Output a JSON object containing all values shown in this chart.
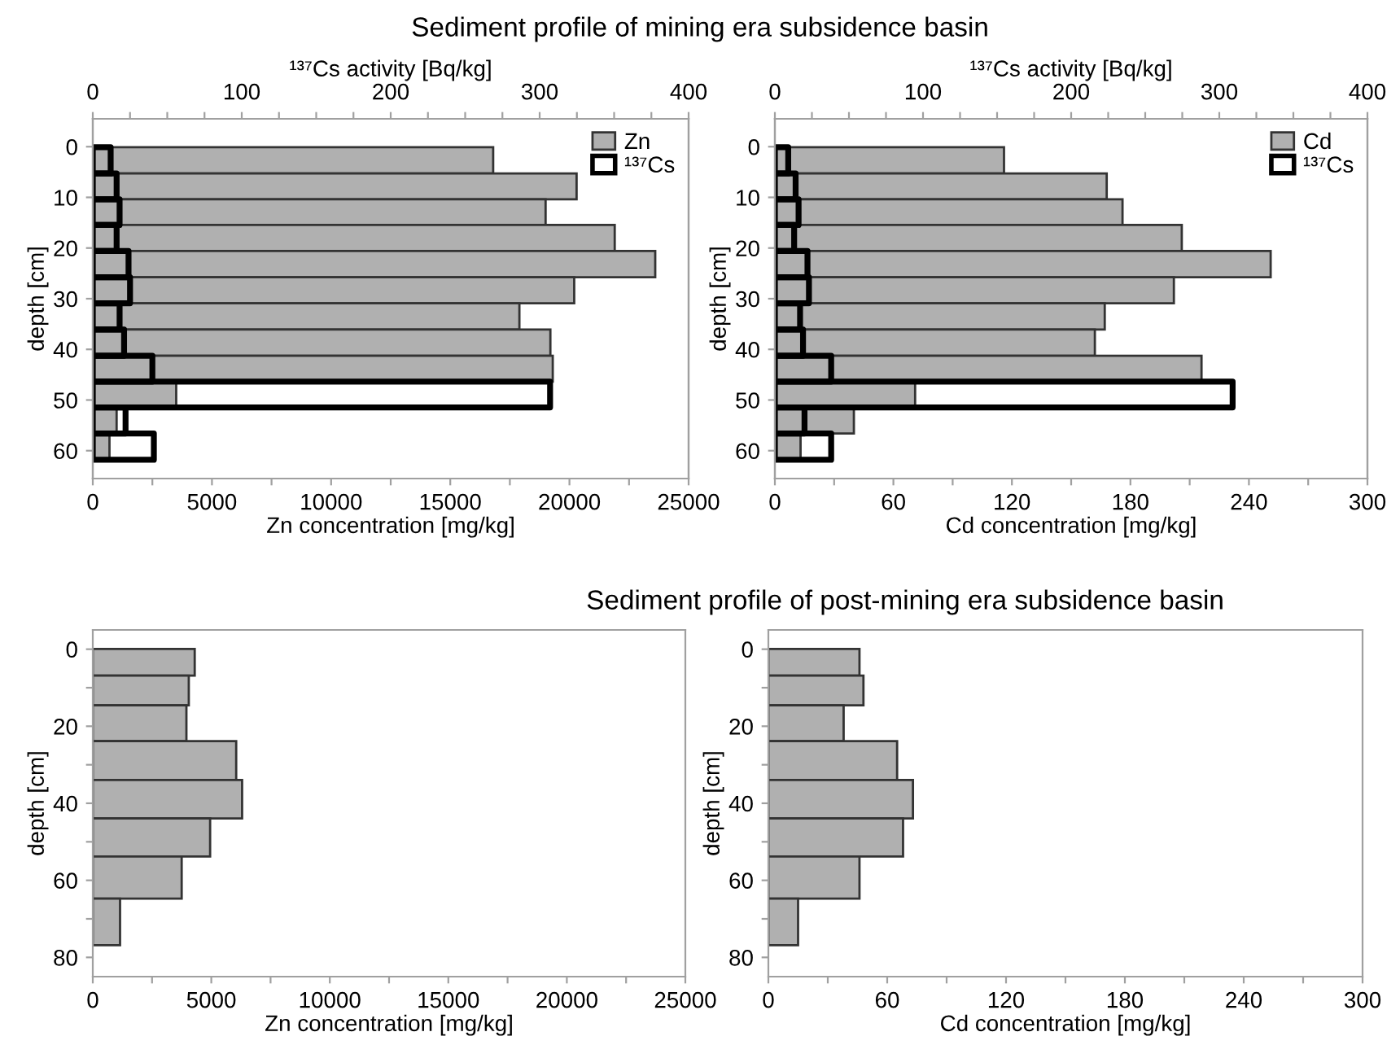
{
  "chart_data": [
    {
      "type": "bar",
      "orientation": "horizontal",
      "title": "Sediment profile of mining era subsidence basin",
      "xlabel": "Zn concentration [mg/kg]",
      "x2label": "¹³⁷Cs activity [Bq/kg]",
      "ylabel": "depth [cm]",
      "x": [
        2.7,
        7.9,
        12.9,
        18.0,
        23.2,
        28.3,
        33.5,
        38.7,
        43.8,
        48.9,
        54.0,
        59.2
      ],
      "ylim": [
        65.5,
        -5.5
      ],
      "yticks": [
        0,
        10,
        20,
        30,
        40,
        50,
        60
      ],
      "xlim": [
        0,
        25000
      ],
      "xticks": [
        0,
        {
          "value": 2500,
          "label": null
        },
        5000,
        {
          "value": 7500,
          "label": null
        },
        10000,
        {
          "value": 12500,
          "label": null
        },
        15000,
        {
          "value": 17500,
          "label": null
        },
        20000,
        {
          "value": 22500,
          "label": null
        },
        25000
      ],
      "x2lim": [
        0,
        400
      ],
      "x2ticks": [
        0,
        {
          "value": 25,
          "label": null
        },
        {
          "value": 50,
          "label": null
        },
        {
          "value": 75,
          "label": null
        },
        100,
        {
          "value": 125,
          "label": null
        },
        {
          "value": 150,
          "label": null
        },
        {
          "value": 175,
          "label": null
        },
        200,
        {
          "value": 225,
          "label": null
        },
        {
          "value": 250,
          "label": null
        },
        {
          "value": 275,
          "label": null
        },
        300,
        {
          "value": 325,
          "label": null
        },
        {
          "value": 350,
          "label": null
        },
        {
          "value": 375,
          "label": null
        },
        400
      ],
      "legend": "top right",
      "series": [
        {
          "name": "Zn",
          "color": "#b0b0b0",
          "values": [
            16800,
            20300,
            19000,
            21900,
            23600,
            20200,
            17900,
            19200,
            19300,
            3500,
            1000,
            700
          ]
        },
        {
          "name": "¹³⁷Cs",
          "axis": "x2",
          "color": "#000000",
          "values": [
            12,
            16,
            18,
            16,
            24,
            25,
            18,
            21,
            40,
            307,
            22,
            41
          ]
        }
      ]
    },
    {
      "type": "bar",
      "orientation": "horizontal",
      "xlabel": "Cd concentration [mg/kg]",
      "x2label": "¹³⁷Cs activity [Bq/kg]",
      "ylabel": "depth [cm]",
      "x": [
        2.7,
        7.9,
        12.9,
        18.0,
        23.2,
        28.3,
        33.5,
        38.7,
        43.8,
        48.9,
        54.0,
        59.2
      ],
      "ylim": [
        65.5,
        -5.5
      ],
      "yticks": [
        0,
        10,
        20,
        30,
        40,
        50,
        60
      ],
      "xlim": [
        0,
        300
      ],
      "xticks": [
        0,
        {
          "value": 30,
          "label": null
        },
        60,
        {
          "value": 90,
          "label": null
        },
        120,
        {
          "value": 150,
          "label": null
        },
        180,
        {
          "value": 210,
          "label": null
        },
        240,
        {
          "value": 270,
          "label": null
        },
        300
      ],
      "x2lim": [
        0,
        400
      ],
      "x2ticks": [
        0,
        {
          "value": 25,
          "label": null
        },
        {
          "value": 50,
          "label": null
        },
        {
          "value": 75,
          "label": null
        },
        100,
        {
          "value": 125,
          "label": null
        },
        {
          "value": 150,
          "label": null
        },
        {
          "value": 175,
          "label": null
        },
        200,
        {
          "value": 225,
          "label": null
        },
        {
          "value": 250,
          "label": null
        },
        {
          "value": 275,
          "label": null
        },
        300,
        {
          "value": 325,
          "label": null
        },
        {
          "value": 350,
          "label": null
        },
        {
          "value": 375,
          "label": null
        },
        400
      ],
      "legend": "top right",
      "series": [
        {
          "name": "Cd",
          "color": "#b0b0b0",
          "values": [
            116,
            168,
            176,
            206,
            251,
            202,
            167,
            162,
            216,
            71,
            40,
            13
          ]
        },
        {
          "name": "¹³⁷Cs",
          "axis": "x2",
          "color": "#000000",
          "values": [
            9,
            14,
            16,
            13,
            22,
            23,
            17,
            19,
            38,
            309,
            20,
            38
          ]
        }
      ]
    },
    {
      "type": "bar",
      "orientation": "horizontal",
      "xlabel": "Zn concentration [mg/kg]",
      "ylabel": "depth [cm]",
      "x": [
        3.4,
        10.3,
        18.8,
        28.9,
        39.0,
        48.9,
        58.7,
        70.8
      ],
      "ylim": [
        85,
        -5
      ],
      "yticks": [
        0,
        {
          "value": 10,
          "label": null
        },
        20,
        {
          "value": 30,
          "label": null
        },
        40,
        {
          "value": 50,
          "label": null
        },
        60,
        {
          "value": 70,
          "label": null
        },
        80
      ],
      "xlim": [
        0,
        25000
      ],
      "xticks": [
        0,
        {
          "value": 2500,
          "label": null
        },
        5000,
        {
          "value": 7500,
          "label": null
        },
        10000,
        {
          "value": 12500,
          "label": null
        },
        15000,
        {
          "value": 17500,
          "label": null
        },
        20000,
        {
          "value": 22500,
          "label": null
        },
        25000
      ],
      "series": [
        {
          "color": "#b0b0b0",
          "values": [
            4300,
            4050,
            3950,
            6050,
            6300,
            4950,
            3750,
            1150
          ]
        }
      ]
    },
    {
      "type": "bar",
      "orientation": "horizontal",
      "title": "Sediment profile of post-mining era subsidence basin",
      "xlabel": "Cd concentration [mg/kg]",
      "ylabel": "depth [cm]",
      "x": [
        3.4,
        10.3,
        18.8,
        28.9,
        39.0,
        48.9,
        58.7,
        70.8
      ],
      "ylim": [
        85,
        -5
      ],
      "yticks": [
        0,
        {
          "value": 10,
          "label": null
        },
        20,
        {
          "value": 30,
          "label": null
        },
        40,
        {
          "value": 50,
          "label": null
        },
        60,
        {
          "value": 70,
          "label": null
        },
        80
      ],
      "xlim": [
        0,
        300
      ],
      "xticks": [
        0,
        {
          "value": 30,
          "label": null
        },
        60,
        {
          "value": 90,
          "label": null
        },
        120,
        {
          "value": 150,
          "label": null
        },
        180,
        {
          "value": 210,
          "label": null
        },
        240,
        {
          "value": 270,
          "label": null
        },
        300
      ],
      "series": [
        {
          "color": "#b0b0b0",
          "values": [
            46,
            48,
            38,
            65,
            73,
            68,
            46,
            15
          ]
        }
      ]
    }
  ]
}
